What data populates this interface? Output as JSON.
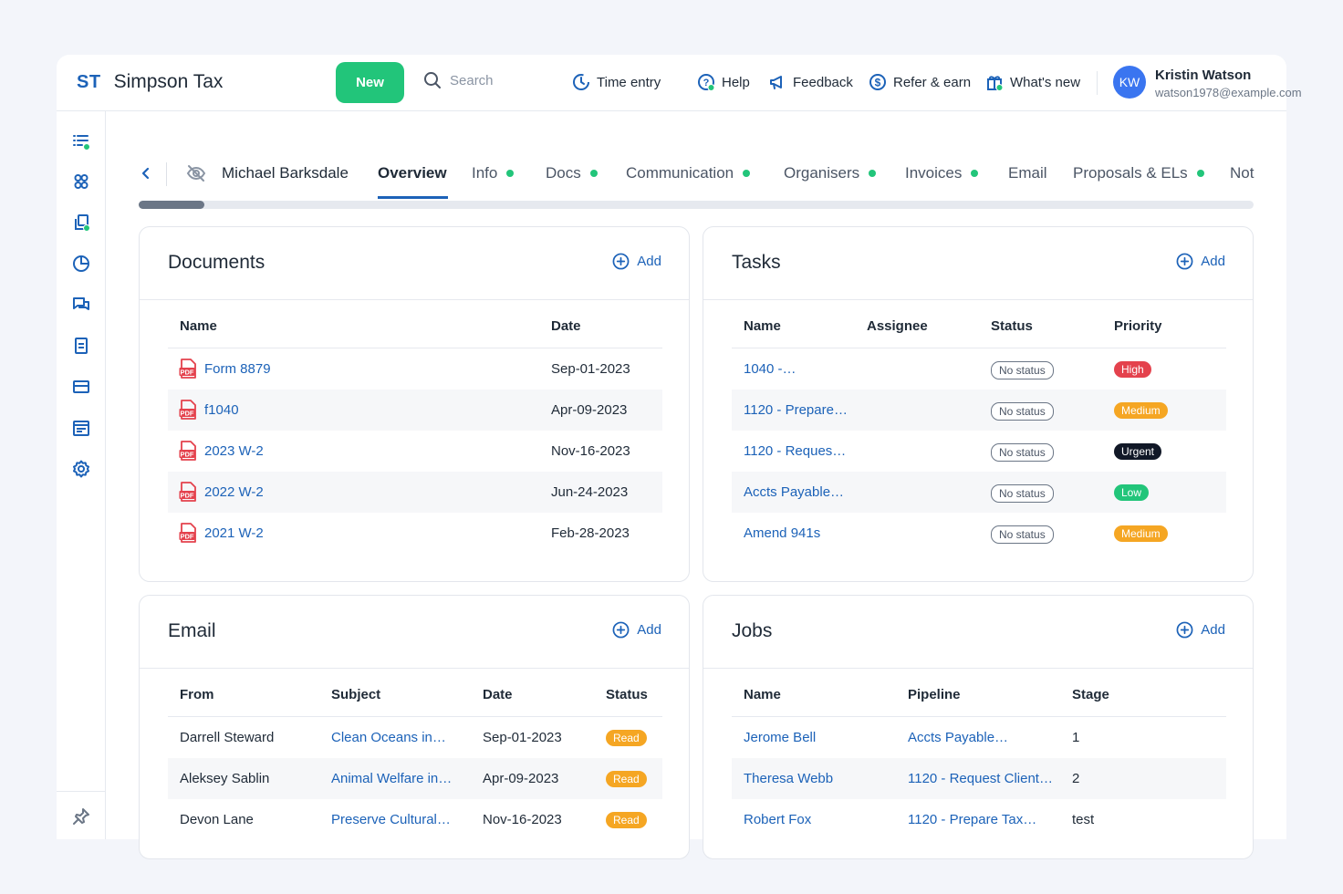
{
  "header": {
    "logo": "ST",
    "company": "Simpson Tax",
    "new_label": "New",
    "search_placeholder": "Search",
    "nav": [
      {
        "label": "Time entry",
        "icon": "clock-icon"
      },
      {
        "label": "Help",
        "icon": "help-icon"
      },
      {
        "label": "Feedback",
        "icon": "megaphone-icon"
      },
      {
        "label": "Refer & earn",
        "icon": "dollar-icon"
      },
      {
        "label": "What's new",
        "icon": "gift-icon"
      }
    ],
    "user": {
      "initials": "KW",
      "name": "Kristin Watson",
      "email": "watson1978@example.com"
    }
  },
  "tabs": {
    "client": "Michael Barksdale",
    "items": [
      {
        "label": "Overview"
      },
      {
        "label": "Info"
      },
      {
        "label": "Docs"
      },
      {
        "label": "Communication"
      },
      {
        "label": "Organisers"
      },
      {
        "label": "Invoices"
      },
      {
        "label": "Email"
      },
      {
        "label": "Proposals & ELs"
      },
      {
        "label": "Not"
      }
    ]
  },
  "documents": {
    "title": "Documents",
    "add_label": "Add",
    "columns": [
      "Name",
      "Date"
    ],
    "rows": [
      {
        "name": "Form 8879",
        "date": "Sep-01-2023"
      },
      {
        "name": "f1040",
        "date": "Apr-09-2023"
      },
      {
        "name": "2023 W-2",
        "date": "Nov-16-2023"
      },
      {
        "name": "2022 W-2",
        "date": "Jun-24-2023"
      },
      {
        "name": "2021 W-2",
        "date": "Feb-28-2023"
      }
    ]
  },
  "tasks": {
    "title": "Tasks",
    "add_label": "Add",
    "columns": [
      "Name",
      "Assignee",
      "Status",
      "Priority"
    ],
    "rows": [
      {
        "name": "1040 -…",
        "assignee": "",
        "status": "No status",
        "priority": "High"
      },
      {
        "name": "1120 - Prepare…",
        "assignee": "",
        "status": "No status",
        "priority": "Medium"
      },
      {
        "name": "1120 - Reques…",
        "assignee": "",
        "status": "No status",
        "priority": "Urgent"
      },
      {
        "name": "Accts Payable…",
        "assignee": "",
        "status": "No status",
        "priority": "Low"
      },
      {
        "name": "Amend 941s",
        "assignee": "",
        "status": "No status",
        "priority": "Medium"
      }
    ]
  },
  "email": {
    "title": "Email",
    "add_label": "Add",
    "columns": [
      "From",
      "Subject",
      "Date",
      "Status"
    ],
    "rows": [
      {
        "from": "Darrell Steward",
        "subject": "Clean Oceans in…",
        "date": "Sep-01-2023",
        "status": "Read"
      },
      {
        "from": "Aleksey Sablin",
        "subject": "Animal Welfare in…",
        "date": "Apr-09-2023",
        "status": "Read"
      },
      {
        "from": "Devon Lane",
        "subject": "Preserve Cultural…",
        "date": "Nov-16-2023",
        "status": "Read"
      }
    ]
  },
  "jobs": {
    "title": "Jobs",
    "add_label": "Add",
    "columns": [
      "Name",
      "Pipeline",
      "Stage"
    ],
    "rows": [
      {
        "name": "Jerome Bell",
        "pipeline": "Accts Payable…",
        "stage": "1"
      },
      {
        "name": "Theresa Webb",
        "pipeline": "1120 - Request Client…",
        "stage": "2"
      },
      {
        "name": "Robert Fox",
        "pipeline": "1120 - Prepare Tax…",
        "stage": "test"
      }
    ]
  },
  "colors": {
    "accent": "#1c62b8",
    "new_button": "#22c57a",
    "high": "#e4424d",
    "medium": "#f5a623",
    "urgent": "#111827",
    "low": "#22c57a"
  }
}
